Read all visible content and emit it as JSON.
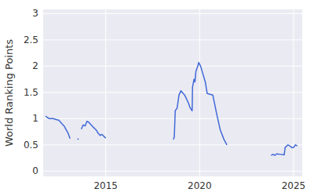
{
  "chart_data": {
    "type": "line",
    "y_label": "World Ranking Points",
    "color": "#4169d8",
    "grid": true,
    "x": [
      2011.8,
      2011.9,
      2012.0,
      2012.2,
      2012.4,
      2012.5,
      2012.6,
      2012.8,
      2013.0,
      2013.1,
      2013.3,
      2013.5,
      2013.55,
      2013.6,
      2013.7,
      2013.8,
      2013.9,
      2014.0,
      2014.1,
      2014.3,
      2014.5,
      2014.6,
      2014.7,
      2014.8,
      2015.0,
      2016.0,
      2018.6,
      2018.65,
      2018.7,
      2018.8,
      2018.9,
      2019.0,
      2019.2,
      2019.4,
      2019.5,
      2019.6,
      2019.62,
      2019.7,
      2019.75,
      2019.8,
      2019.9,
      2019.95,
      2020.05,
      2020.3,
      2020.4,
      2020.7,
      2020.9,
      2021.1,
      2021.3,
      2021.45,
      2022.0,
      2023.8,
      2023.9,
      2024.0,
      2024.1,
      2024.3,
      2024.5,
      2024.55,
      2024.7,
      2024.8,
      2024.9,
      2025.0,
      2025.1,
      2025.2
    ],
    "values": [
      1.05,
      1.02,
      1.0,
      1.0,
      0.98,
      0.97,
      0.93,
      0.85,
      0.72,
      0.62,
      null,
      0.62,
      0.6,
      null,
      0.8,
      0.88,
      0.86,
      0.95,
      0.93,
      0.85,
      0.78,
      0.72,
      0.68,
      0.7,
      0.63,
      null,
      0.6,
      0.65,
      1.15,
      1.2,
      1.45,
      1.53,
      1.45,
      1.3,
      1.2,
      1.15,
      1.6,
      1.75,
      1.7,
      1.9,
      2.0,
      2.07,
      2.0,
      1.7,
      1.48,
      1.45,
      1.1,
      0.78,
      0.6,
      0.5,
      null,
      0.3,
      0.32,
      0.3,
      0.33,
      0.32,
      0.31,
      0.45,
      0.5,
      0.48,
      0.45,
      0.45,
      0.5,
      0.48
    ],
    "xlim": [
      2011.67,
      2025.46
    ],
    "xticks": [
      2015,
      2020,
      2025
    ],
    "ylim": [
      -0.1,
      3.08
    ],
    "yticks": [
      0,
      0.5,
      1,
      1.5,
      2,
      2.5,
      3
    ]
  }
}
